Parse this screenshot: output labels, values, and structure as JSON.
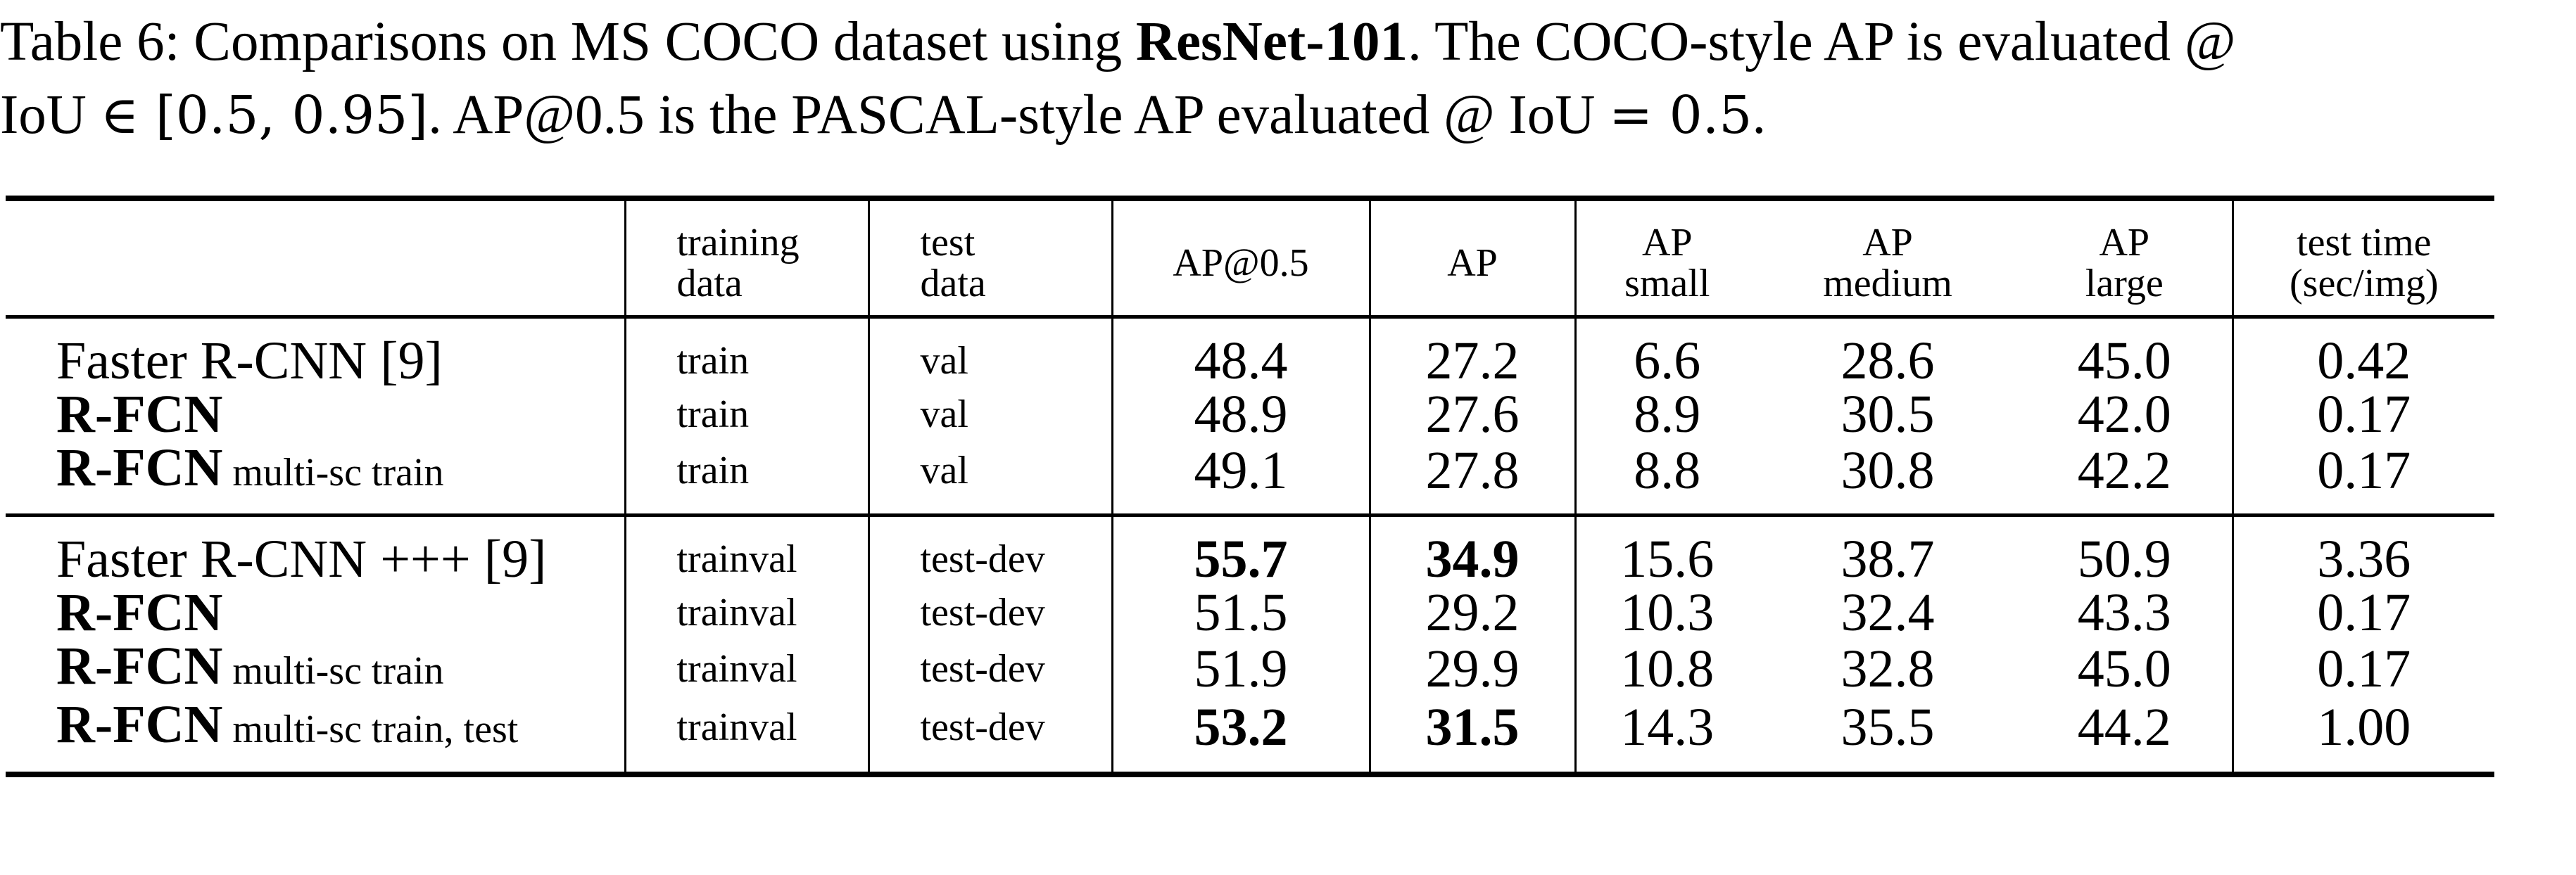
{
  "caption": {
    "prefix": "Table 6: Comparisons on MS COCO dataset using ",
    "bold": "ResNet-101",
    "after_bold": ". The COCO-style AP is evaluated @",
    "line2_start": "IoU ",
    "elem": "∈",
    "interval": " [0.5, 0.95]",
    "line2_rest": ". AP@0.5 is the PASCAL-style AP evaluated @ IoU ",
    "equals": "=",
    "value": " 0.5",
    "end": "."
  },
  "headers": {
    "training_1": "training",
    "training_2": "data",
    "test_1": "test",
    "test_2": "data",
    "ap50": "AP@0.5",
    "ap": "AP",
    "ap_small_1": "AP",
    "ap_small_2": "small",
    "ap_medium_1": "AP",
    "ap_medium_2": "medium",
    "ap_large_1": "AP",
    "ap_large_2": "large",
    "time_1": "test time",
    "time_2": "(sec/img)"
  },
  "rows": [
    {
      "name": "Faster R-CNN [9]",
      "name_bold": false,
      "suffix": "",
      "train": "train",
      "test": "val",
      "ap50": "48.4",
      "ap": "27.2",
      "ap_s": "6.6",
      "ap_m": "28.6",
      "ap_l": "45.0",
      "time": "0.42"
    },
    {
      "name": "R-FCN",
      "name_bold": true,
      "suffix": "",
      "train": "train",
      "test": "val",
      "ap50": "48.9",
      "ap": "27.6",
      "ap_s": "8.9",
      "ap_m": "30.5",
      "ap_l": "42.0",
      "time": "0.17"
    },
    {
      "name": "R-FCN",
      "name_bold": true,
      "suffix": "multi-sc train",
      "train": "train",
      "test": "val",
      "ap50": "49.1",
      "ap": "27.8",
      "ap_s": "8.8",
      "ap_m": "30.8",
      "ap_l": "42.2",
      "time": "0.17"
    },
    {
      "name": "Faster R-CNN +++ [9]",
      "name_bold": false,
      "suffix": "",
      "train": "trainval",
      "test": "test-dev",
      "ap50": "55.7",
      "ap": "34.9",
      "ap_s": "15.6",
      "ap_m": "38.7",
      "ap_l": "50.9",
      "time": "3.36"
    },
    {
      "name": "R-FCN",
      "name_bold": true,
      "suffix": "",
      "train": "trainval",
      "test": "test-dev",
      "ap50": "51.5",
      "ap": "29.2",
      "ap_s": "10.3",
      "ap_m": "32.4",
      "ap_l": "43.3",
      "time": "0.17"
    },
    {
      "name": "R-FCN",
      "name_bold": true,
      "suffix": "multi-sc train",
      "train": "trainval",
      "test": "test-dev",
      "ap50": "51.9",
      "ap": "29.9",
      "ap_s": "10.8",
      "ap_m": "32.8",
      "ap_l": "45.0",
      "time": "0.17"
    },
    {
      "name": "R-FCN",
      "name_bold": true,
      "suffix": "multi-sc train, test",
      "train": "trainval",
      "test": "test-dev",
      "ap50": "53.2",
      "ap": "31.5",
      "ap_s": "14.3",
      "ap_m": "35.5",
      "ap_l": "44.2",
      "time": "1.00"
    }
  ]
}
